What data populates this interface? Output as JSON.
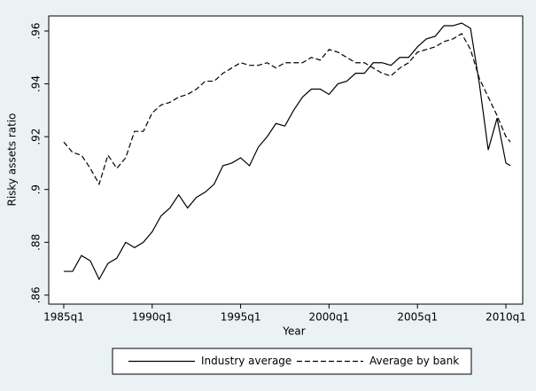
{
  "chart_data": {
    "type": "line",
    "x_label": "Year",
    "y_label": "Risky assets ratio",
    "x": [
      1985,
      1985.5,
      1986,
      1986.5,
      1987,
      1987.5,
      1988,
      1988.5,
      1989,
      1989.5,
      1990,
      1990.5,
      1991,
      1991.5,
      1992,
      1992.5,
      1993,
      1993.5,
      1994,
      1994.5,
      1995,
      1995.5,
      1996,
      1996.5,
      1997,
      1997.5,
      1998,
      1998.5,
      1999,
      1999.5,
      2000,
      2000.5,
      2001,
      2001.5,
      2002,
      2002.5,
      2003,
      2003.5,
      2004,
      2004.5,
      2005,
      2005.5,
      2006,
      2006.5,
      2007,
      2007.5,
      2008,
      2008.5,
      2009,
      2009.5,
      2010,
      2010.25
    ],
    "series": [
      {
        "name": "Industry average",
        "color": "#000000",
        "dash": "solid",
        "values": [
          0.869,
          0.869,
          0.875,
          0.873,
          0.866,
          0.872,
          0.874,
          0.88,
          0.878,
          0.88,
          0.884,
          0.89,
          0.893,
          0.898,
          0.893,
          0.897,
          0.899,
          0.902,
          0.909,
          0.91,
          0.912,
          0.909,
          0.916,
          0.92,
          0.925,
          0.924,
          0.93,
          0.935,
          0.938,
          0.938,
          0.936,
          0.94,
          0.941,
          0.944,
          0.944,
          0.948,
          0.948,
          0.947,
          0.95,
          0.95,
          0.954,
          0.957,
          0.958,
          0.962,
          0.962,
          0.963,
          0.961,
          0.94,
          0.915,
          0.927,
          0.91,
          0.909
        ]
      },
      {
        "name": "Average by bank",
        "color": "#000000",
        "dash": "dashed",
        "values": [
          0.918,
          0.914,
          0.913,
          0.908,
          0.902,
          0.913,
          0.908,
          0.912,
          0.922,
          0.922,
          0.929,
          0.932,
          0.933,
          0.935,
          0.936,
          0.938,
          0.941,
          0.941,
          0.944,
          0.946,
          0.948,
          0.947,
          0.947,
          0.948,
          0.946,
          0.948,
          0.948,
          0.948,
          0.95,
          0.949,
          0.953,
          0.952,
          0.95,
          0.948,
          0.948,
          0.946,
          0.944,
          0.943,
          0.946,
          0.948,
          0.952,
          0.953,
          0.954,
          0.956,
          0.957,
          0.959,
          0.953,
          0.942,
          0.935,
          0.928,
          0.92,
          0.918
        ]
      }
    ],
    "xlim": [
      1984.15,
      2010.95
    ],
    "xticks": [
      {
        "value": 1985,
        "label": "1985q1"
      },
      {
        "value": 1990,
        "label": "1990q1"
      },
      {
        "value": 1995,
        "label": "1995q1"
      },
      {
        "value": 2000,
        "label": "2000q1"
      },
      {
        "value": 2005,
        "label": "2005q1"
      },
      {
        "value": 2010,
        "label": "2010q1"
      }
    ],
    "ylim": [
      0.8566,
      0.9657
    ],
    "yticks": [
      {
        "value": 0.86,
        "label": ".86"
      },
      {
        "value": 0.88,
        "label": ".88"
      },
      {
        "value": 0.9,
        "label": ".9"
      },
      {
        "value": 0.92,
        "label": ".92"
      },
      {
        "value": 0.94,
        "label": ".94"
      },
      {
        "value": 0.96,
        "label": ".96"
      }
    ],
    "legend": "bottom"
  }
}
